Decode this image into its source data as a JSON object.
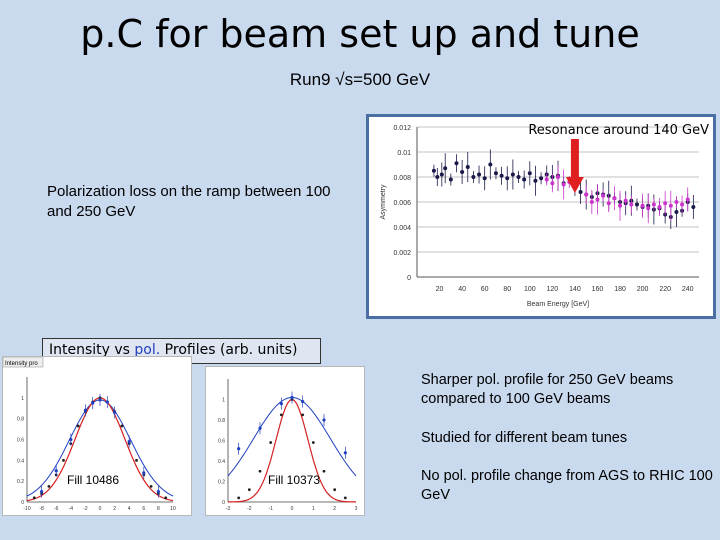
{
  "slide": {
    "title": "p.C for beam set up and tune",
    "subtitle": "Run9 √s=500 GeV",
    "ramp_note": "Polarization loss on the ramp between 100 and 250 GeV",
    "profiles_box_label": "Intensity vs pol. Profiles (arb. units)",
    "profiles_box_highlight": "pol.",
    "notes": [
      "Sharper pol. profile for 250 GeV beams compared to 100 GeV beams",
      "Studied for different beam tunes",
      "No pol. profile change from AGS to RHIC 100 GeV"
    ],
    "colors": {
      "background": "#c9d9ee",
      "frame": "#4a6fa5",
      "arrow": "#e02020",
      "pol_blue": "#1f3fbf",
      "series_dark": "#1a1a4a",
      "series_magenta": "#cc33cc",
      "fit_red": "#d42020"
    }
  },
  "chart_data": [
    {
      "type": "scatter",
      "annotation": "Resonance around 140 GeV",
      "annotation_arrow_x": 140,
      "xlabel": "Beam Energy [GeV]",
      "ylabel": "Asymmetry",
      "xlim": [
        0,
        250
      ],
      "ylim": [
        0,
        0.012
      ],
      "xticks": [
        "20",
        "40",
        "60",
        "80",
        "100",
        "120",
        "140",
        "160",
        "180",
        "200",
        "220",
        "240"
      ],
      "yticks": [
        "0",
        "0.002",
        "0.004",
        "0.006",
        "0.008",
        "0.01",
        "0.012"
      ],
      "grid": "horizontal lines",
      "series": [
        {
          "x": [
            15,
            18,
            22,
            25,
            30,
            35,
            40,
            45,
            50,
            55,
            60,
            65,
            70,
            75,
            80,
            85,
            90,
            95,
            100,
            105,
            110,
            115,
            120,
            125,
            130,
            140,
            145,
            150,
            155,
            160,
            165,
            170,
            175,
            180,
            185,
            190,
            195,
            200,
            205,
            210,
            215,
            220,
            225,
            230,
            235,
            240,
            245
          ],
          "y": [
            0.0085,
            0.008,
            0.0082,
            0.0087,
            0.0078,
            0.0091,
            0.0084,
            0.0088,
            0.008,
            0.0082,
            0.0079,
            0.009,
            0.0083,
            0.0081,
            0.0079,
            0.0082,
            0.008,
            0.0078,
            0.0083,
            0.0077,
            0.0079,
            0.0082,
            0.008,
            0.0081,
            0.0075,
            0.0072,
            0.0068,
            0.0066,
            0.0064,
            0.0067,
            0.0066,
            0.0065,
            0.0063,
            0.006,
            0.0059,
            0.0061,
            0.0058,
            0.0056,
            0.0057,
            0.0054,
            0.0055,
            0.005,
            0.0048,
            0.0052,
            0.0053,
            0.006,
            0.0056
          ]
        },
        {
          "x": [
            115,
            120,
            125,
            130,
            135,
            150,
            155,
            160,
            165,
            170,
            175,
            180,
            185,
            190,
            200,
            205,
            210,
            215,
            220,
            225,
            230,
            235,
            240
          ],
          "y": [
            0.0078,
            0.0075,
            0.008,
            0.0074,
            0.0076,
            0.0066,
            0.006,
            0.0062,
            0.0065,
            0.0059,
            0.0063,
            0.0057,
            0.0061,
            0.0058,
            0.0057,
            0.0055,
            0.0058,
            0.0056,
            0.0059,
            0.0057,
            0.006,
            0.0058,
            0.0062
          ]
        }
      ]
    },
    {
      "type": "scatter",
      "label": "Fill 10486",
      "header": "Intensity pro",
      "xlim": [
        -10,
        10
      ],
      "ylim": [
        0,
        1.2
      ],
      "xticks": [
        "-10",
        "-8",
        "-6",
        "-4",
        "-2",
        "0",
        "2",
        "4",
        "6",
        "8",
        "10"
      ],
      "yticks": [
        "0",
        "0.2",
        "0.4",
        "0.6",
        "0.8",
        "1"
      ],
      "series": [
        {
          "name": "intensity",
          "x": [
            -9,
            -8,
            -7,
            -6,
            -5,
            -4,
            -3,
            -2,
            -1,
            0,
            1,
            2,
            3,
            4,
            5,
            6,
            7,
            8,
            9
          ],
          "y": [
            0.04,
            0.08,
            0.15,
            0.26,
            0.4,
            0.56,
            0.73,
            0.87,
            0.96,
            1.0,
            0.96,
            0.87,
            0.73,
            0.56,
            0.4,
            0.26,
            0.15,
            0.08,
            0.04
          ]
        },
        {
          "name": "pol.",
          "x": [
            -8,
            -6,
            -4,
            -2,
            -1,
            0,
            1,
            2,
            4,
            6,
            8
          ],
          "y": [
            0.1,
            0.3,
            0.6,
            0.88,
            0.95,
            0.98,
            0.96,
            0.86,
            0.58,
            0.28,
            0.1
          ]
        }
      ]
    },
    {
      "type": "scatter",
      "label": "Fill 10373",
      "xlim": [
        -3,
        3
      ],
      "ylim": [
        0,
        1.2
      ],
      "xticks": [
        "-3",
        "-2",
        "-1",
        "0",
        "1",
        "2",
        "3"
      ],
      "yticks": [
        "0",
        "0.2",
        "0.4",
        "0.6",
        "0.8",
        "1"
      ],
      "series": [
        {
          "name": "intensity",
          "x": [
            -2.5,
            -2,
            -1.5,
            -1,
            -0.5,
            0,
            0.5,
            1,
            1.5,
            2,
            2.5
          ],
          "y": [
            0.04,
            0.12,
            0.3,
            0.58,
            0.85,
            1.0,
            0.85,
            0.58,
            0.3,
            0.12,
            0.04
          ]
        },
        {
          "name": "pol.",
          "x": [
            -2.5,
            -1.5,
            -0.5,
            0,
            0.5,
            1.5,
            2.5
          ],
          "y": [
            0.52,
            0.72,
            0.96,
            1.02,
            0.98,
            0.8,
            0.48
          ]
        }
      ]
    }
  ]
}
